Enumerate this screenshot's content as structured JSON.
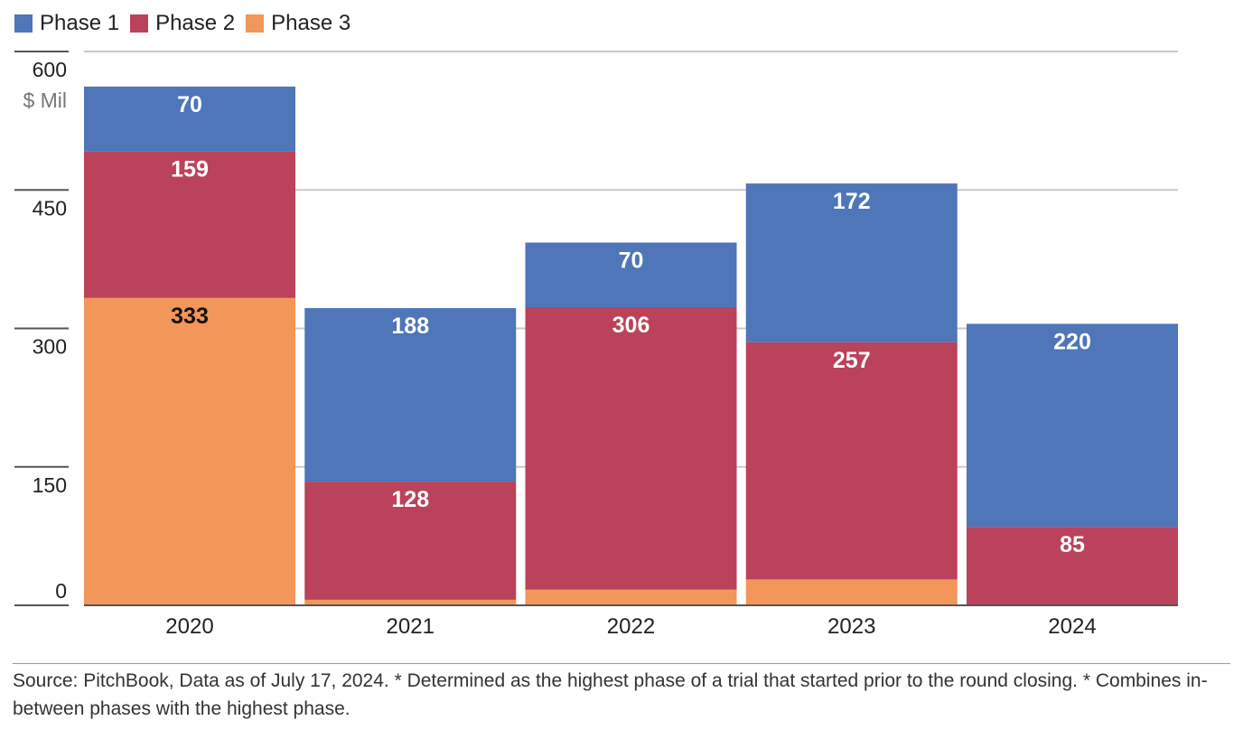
{
  "colors": {
    "phase1": "#4e76b8",
    "phase2": "#bb425b",
    "phase3": "#f2965a",
    "grid": "#c9c9c9",
    "axis": "#555555",
    "label_light": "#ffffff",
    "label_dark": "#111111"
  },
  "chart_data": {
    "type": "bar",
    "stacked": true,
    "title": "",
    "xlabel": "",
    "ylabel": "$ Mil",
    "ylim": [
      0,
      600
    ],
    "yticks": [
      0,
      150,
      300,
      450,
      600
    ],
    "ytick_labels": [
      "0",
      "150",
      "300",
      "450",
      "600"
    ],
    "grid": true,
    "legend_position": "top-left",
    "categories": [
      "2020",
      "2021",
      "2022",
      "2023",
      "2024"
    ],
    "series": [
      {
        "name": "Phase 3",
        "color_key": "phase3",
        "values": [
          333,
          6,
          17,
          28,
          0
        ],
        "labels": [
          "333",
          "",
          "",
          "",
          ""
        ]
      },
      {
        "name": "Phase 2",
        "color_key": "phase2",
        "values": [
          159,
          128,
          306,
          257,
          85
        ],
        "labels": [
          "159",
          "128",
          "306",
          "257",
          "85"
        ]
      },
      {
        "name": "Phase 1",
        "color_key": "phase1",
        "values": [
          70,
          188,
          70,
          172,
          220
        ],
        "labels": [
          "70",
          "188",
          "70",
          "172",
          "220"
        ]
      }
    ]
  },
  "legend": {
    "items": [
      {
        "label": "Phase 1",
        "color_key": "phase1"
      },
      {
        "label": "Phase 2",
        "color_key": "phase2"
      },
      {
        "label": "Phase 3",
        "color_key": "phase3"
      }
    ]
  },
  "source_note": "Source: PitchBook, Data as of July 17, 2024. * Determined as the highest phase of a trial that started prior to the round closing. * Combines in-between phases with the highest phase."
}
